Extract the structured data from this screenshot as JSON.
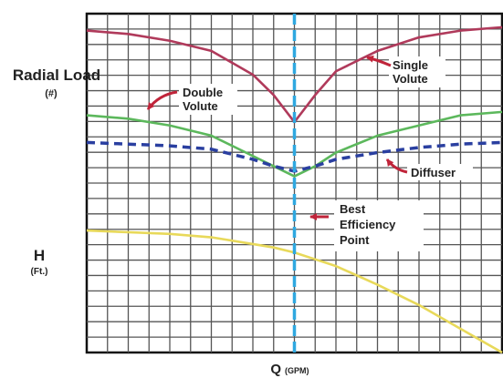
{
  "chart_data": {
    "type": "line",
    "xlabel": "Q",
    "xlabel_unit": "(GPM)",
    "ylabel_top": "Radial Load",
    "ylabel_top_unit": "(#)",
    "ylabel_bottom": "H",
    "ylabel_bottom_unit": "(Ft.)",
    "xlim": [
      0,
      100
    ],
    "ylim": [
      0,
      100
    ],
    "grid": true,
    "x": [
      0,
      10,
      20,
      30,
      40,
      45,
      50,
      55,
      60,
      70,
      80,
      90,
      100
    ],
    "best_efficiency_x": 50,
    "series": [
      {
        "name": "Single Volute",
        "color": "#b03a5b",
        "style": "solid",
        "values": [
          95,
          94,
          92,
          89,
          82,
          76,
          68,
          76,
          83,
          89,
          93,
          95,
          96
        ]
      },
      {
        "name": "Double Volute",
        "color": "#5cb85c",
        "style": "solid",
        "values": [
          70,
          69,
          67,
          64,
          58,
          55,
          52,
          55,
          59,
          64,
          67,
          70,
          71
        ]
      },
      {
        "name": "Diffuser",
        "color": "#2a3fa0",
        "style": "dashed",
        "values": [
          62,
          61.5,
          61,
          60,
          57,
          55,
          53.5,
          55,
          57,
          59,
          60.5,
          61.5,
          62
        ]
      },
      {
        "name": "",
        "color": "#e8d95a",
        "style": "solid",
        "values": [
          36,
          35.5,
          35,
          34,
          32,
          31,
          29.5,
          27.5,
          25.5,
          20,
          14,
          7,
          0
        ]
      }
    ],
    "annotations": [
      {
        "text_lines": [
          "Single",
          "Volute"
        ],
        "series": "Single Volute"
      },
      {
        "text_lines": [
          "Double",
          "Volute"
        ],
        "series": "Double Volute"
      },
      {
        "text_lines": [
          "Diffuser"
        ],
        "series": "Diffuser"
      },
      {
        "text_lines": [
          "Best",
          "Efficiency",
          "Point"
        ],
        "series": "best-efficiency"
      }
    ]
  }
}
